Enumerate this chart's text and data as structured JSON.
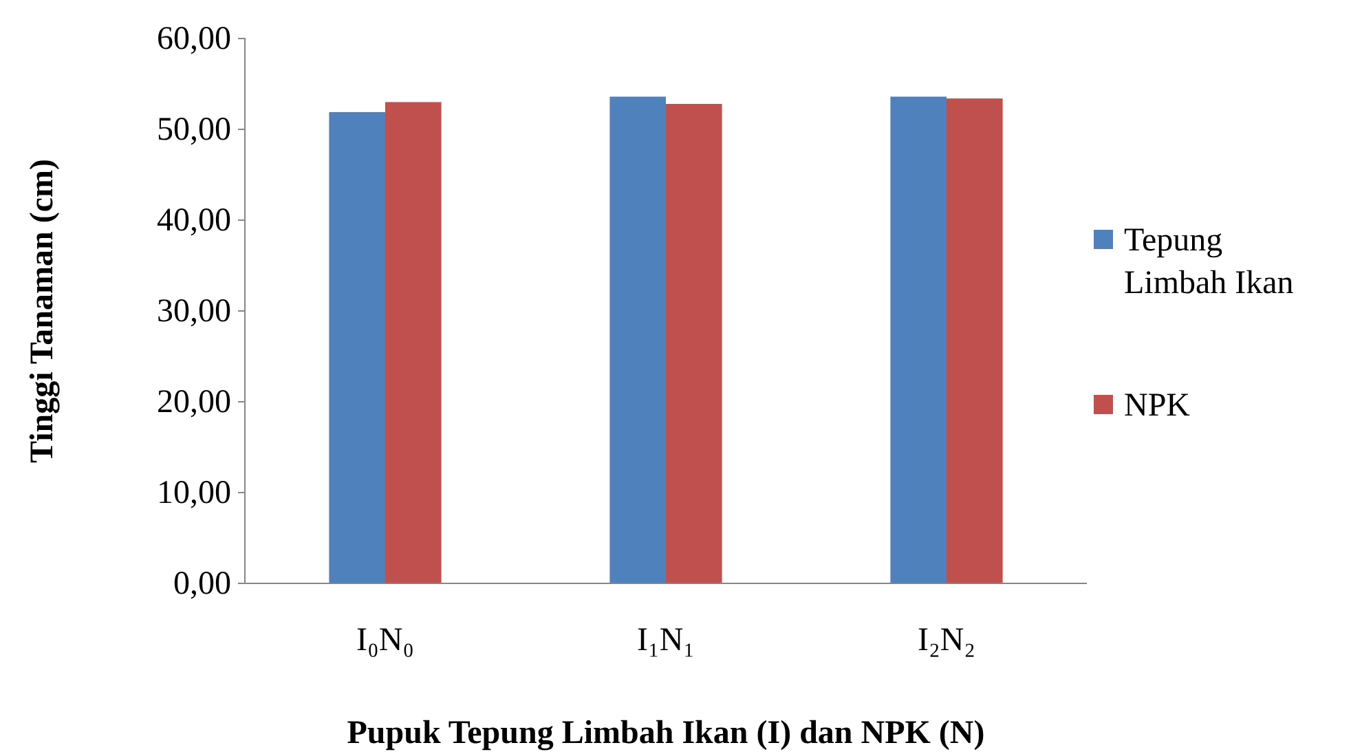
{
  "chart_data": {
    "type": "bar",
    "xlabel": "Pupuk Tepung Limbah Ikan (I) dan NPK (N)",
    "ylabel": "Tinggi Tanaman (cm)",
    "categories": [
      "I₀N₀",
      "I₁N₁",
      "I₂N₂"
    ],
    "series": [
      {
        "name": "Tepung Limbah Ikan",
        "color": "#4f81bd",
        "values": [
          51.9,
          53.6,
          53.6
        ]
      },
      {
        "name": "NPK",
        "color": "#c0504d",
        "values": [
          53.0,
          52.8,
          53.4
        ]
      }
    ],
    "ylim": [
      0,
      60
    ],
    "yticks": [
      {
        "value": 0,
        "label": "0,00"
      },
      {
        "value": 10,
        "label": "10,00"
      },
      {
        "value": 20,
        "label": "20,00"
      },
      {
        "value": 30,
        "label": "30,00"
      },
      {
        "value": 40,
        "label": "40,00"
      },
      {
        "value": 50,
        "label": "50,00"
      },
      {
        "value": 60,
        "label": "60,00"
      }
    ],
    "grid": false,
    "legend": "right"
  }
}
